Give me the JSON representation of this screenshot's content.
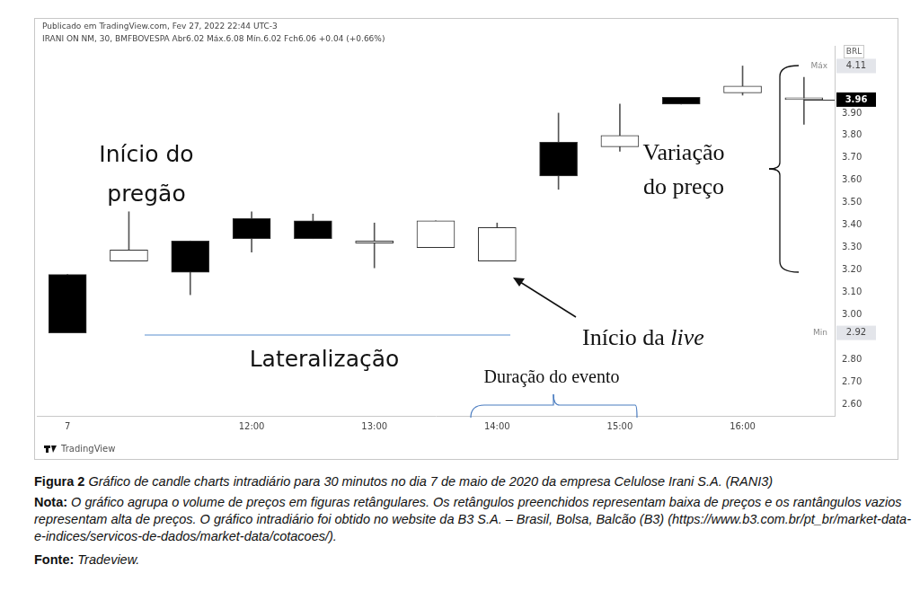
{
  "chart_data": {
    "type": "candlestick",
    "subtitle": "Publicado em TradingView.com, Fev 27, 2022 22:44 UTC-3",
    "title": "IRANI ON NM, 30, BMFBOVESPA Abr6.02 Máx.6.08 Mín.6.02 Fch6.06 +0.04 (+0.66%)",
    "y_unit": "BRL",
    "categories": [
      "7",
      null,
      null,
      "12:00",
      null,
      "13:00",
      null,
      "14:00",
      null,
      "15:00",
      null,
      "16:00",
      null
    ],
    "open": [
      3.18,
      3.24,
      3.33,
      3.43,
      3.42,
      3.32,
      3.3,
      3.24,
      3.77,
      3.75,
      3.97,
      3.99,
      3.96
    ],
    "high": [
      3.18,
      3.46,
      3.33,
      3.46,
      3.45,
      3.41,
      3.42,
      3.41,
      3.9,
      3.94,
      3.97,
      4.11,
      4.06
    ],
    "low": [
      2.92,
      3.24,
      3.09,
      3.28,
      3.34,
      3.21,
      3.3,
      3.24,
      3.56,
      3.73,
      3.94,
      3.98,
      3.85
    ],
    "close": [
      2.92,
      3.29,
      3.19,
      3.34,
      3.34,
      3.33,
      3.42,
      3.39,
      3.62,
      3.8,
      3.94,
      4.02,
      3.96
    ],
    "colors": [
      "#000000",
      "#ffffff",
      "#000000",
      "#000000",
      "#000000",
      "#ffffff",
      "#ffffff",
      "#ffffff",
      "#000000",
      "#ffffff",
      "#000000",
      "#ffffff",
      "#ffffff"
    ],
    "ylim": [
      2.55,
      4.2
    ],
    "yticks": [
      {
        "value": 2.6,
        "label": "2.60"
      },
      {
        "value": 2.7,
        "label": "2.70"
      },
      {
        "value": 2.8,
        "label": "2.80"
      },
      {
        "value": 3.0,
        "label": "3.00"
      },
      {
        "value": 3.1,
        "label": "3.10"
      },
      {
        "value": 3.2,
        "label": "3.20"
      },
      {
        "value": 3.3,
        "label": "3.30"
      },
      {
        "value": 3.4,
        "label": "3.40"
      },
      {
        "value": 3.5,
        "label": "3.50"
      },
      {
        "value": 3.6,
        "label": "3.60"
      },
      {
        "value": 3.7,
        "label": "3.70"
      },
      {
        "value": 3.8,
        "label": "3.80"
      },
      {
        "value": 3.9,
        "label": "3.90"
      }
    ],
    "price_markers": [
      {
        "label": "Máx",
        "value": 4.11
      },
      {
        "label": "Min",
        "value": 2.92
      },
      {
        "value": 3.96
      }
    ],
    "grid": false,
    "annotations": {
      "session_start": [
        "Início do",
        "pregão"
      ],
      "sideways": "Lateralização",
      "live_start": "Início da live",
      "event_duration": "Duração do evento",
      "price_change": [
        "Variação",
        "do preço"
      ],
      "logo": "TradingView"
    }
  },
  "caption": {
    "figure_label": "Figura 2",
    "figure_text": "Gráfico de candle charts intradiário para 30 minutos no dia 7 de maio de 2020 da empresa Celulose Irani S.A. (RANI3)",
    "note_label": "Nota:",
    "note_text": "O gráfico agrupa o volume de preços em figuras retângulares. Os retângulos preenchidos representam baixa de preços e os rantângulos vazios representam alta de preços. O gráfico intradiário foi obtido no website da B3 S.A. – Brasil, Bolsa, Balcão (B3) (https://www.b3.com.br/pt_br/market-data-e-indices/servicos-de-dados/market-data/cotacoes/).",
    "source_label": "Fonte:",
    "source_text": "Tradeview."
  }
}
